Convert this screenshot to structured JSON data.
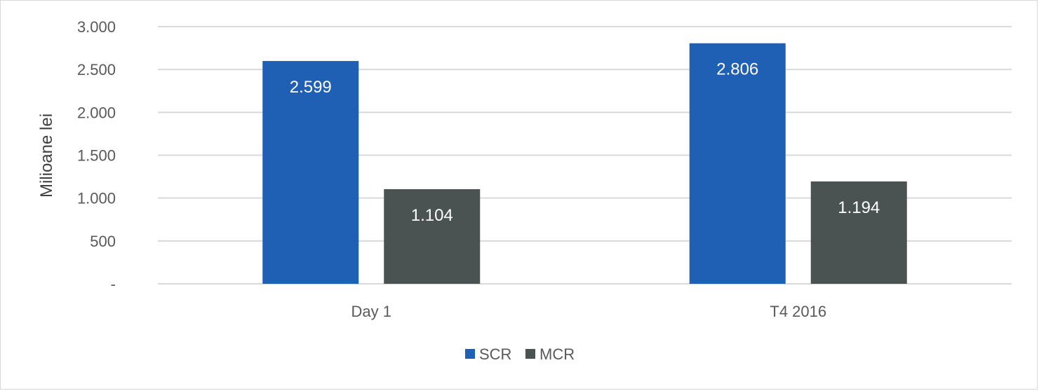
{
  "chart_data": {
    "type": "bar",
    "categories": [
      "Day 1",
      "T4 2016"
    ],
    "series": [
      {
        "name": "SCR",
        "values": [
          2599,
          2806
        ],
        "color": "#1f5fb4"
      },
      {
        "name": "MCR",
        "values": [
          1104,
          1194
        ],
        "color": "#4a5351"
      }
    ],
    "data_labels": [
      [
        "2.599",
        "2.806"
      ],
      [
        "1.104",
        "1.194"
      ]
    ],
    "ylabel": "Milioane lei",
    "ylim": [
      0,
      3000
    ],
    "yticks": [
      0,
      500,
      1000,
      1500,
      2000,
      2500,
      3000
    ],
    "ytick_labels": [
      "-",
      "500",
      "1.000",
      "1.500",
      "2.000",
      "2.500",
      "3.000"
    ],
    "grid": true,
    "legend": "bottom-center",
    "gridline_color": "#d9d9d9"
  }
}
